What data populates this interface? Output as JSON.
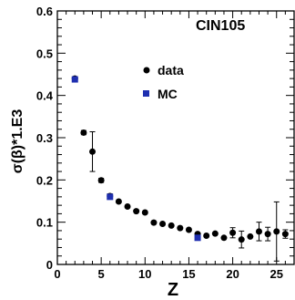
{
  "chart_data": {
    "type": "scatter",
    "title": "CIN105",
    "xlabel": "Z",
    "ylabel": "σ(β)*1.E3",
    "xlim": [
      0,
      27
    ],
    "ylim": [
      0,
      0.6
    ],
    "xticks": [
      0,
      5,
      10,
      15,
      20,
      25
    ],
    "xtick_labels": [
      "0",
      "5",
      "10",
      "15",
      "20",
      "25"
    ],
    "yticks": [
      0,
      0.1,
      0.2,
      0.3,
      0.4,
      0.5,
      0.6
    ],
    "ytick_labels": [
      "0",
      "0.1",
      "0.2",
      "0.3",
      "0.4",
      "0.5",
      "0.6"
    ],
    "grid": false,
    "legend_position": "top-right",
    "series": [
      {
        "name": "data",
        "color": "#000000",
        "marker": "circle",
        "points": [
          {
            "x": 2,
            "y": 0.44
          },
          {
            "x": 3,
            "y": 0.312,
            "err": 0.005
          },
          {
            "x": 4,
            "y": 0.267,
            "err": 0.047
          },
          {
            "x": 5,
            "y": 0.199,
            "err": 0.005
          },
          {
            "x": 6,
            "y": 0.162,
            "err": 0.005
          },
          {
            "x": 7,
            "y": 0.149
          },
          {
            "x": 8,
            "y": 0.137
          },
          {
            "x": 9,
            "y": 0.126
          },
          {
            "x": 10,
            "y": 0.123
          },
          {
            "x": 11,
            "y": 0.099
          },
          {
            "x": 12,
            "y": 0.096
          },
          {
            "x": 13,
            "y": 0.092
          },
          {
            "x": 14,
            "y": 0.086
          },
          {
            "x": 15,
            "y": 0.082
          },
          {
            "x": 16,
            "y": 0.072
          },
          {
            "x": 17,
            "y": 0.068
          },
          {
            "x": 18,
            "y": 0.073
          },
          {
            "x": 19,
            "y": 0.063
          },
          {
            "x": 20,
            "y": 0.075,
            "err": 0.012
          },
          {
            "x": 21,
            "y": 0.059,
            "err": 0.02
          },
          {
            "x": 22,
            "y": 0.066
          },
          {
            "x": 23,
            "y": 0.078,
            "err": 0.022
          },
          {
            "x": 24,
            "y": 0.072,
            "err": 0.016
          },
          {
            "x": 25,
            "y": 0.078,
            "err": 0.07
          },
          {
            "x": 26,
            "y": 0.072,
            "err": 0.01
          }
        ]
      },
      {
        "name": "MC",
        "color": "#1f2fb0",
        "marker": "square",
        "points": [
          {
            "x": 2,
            "y": 0.438
          },
          {
            "x": 6,
            "y": 0.16
          },
          {
            "x": 16,
            "y": 0.063
          }
        ]
      }
    ]
  }
}
